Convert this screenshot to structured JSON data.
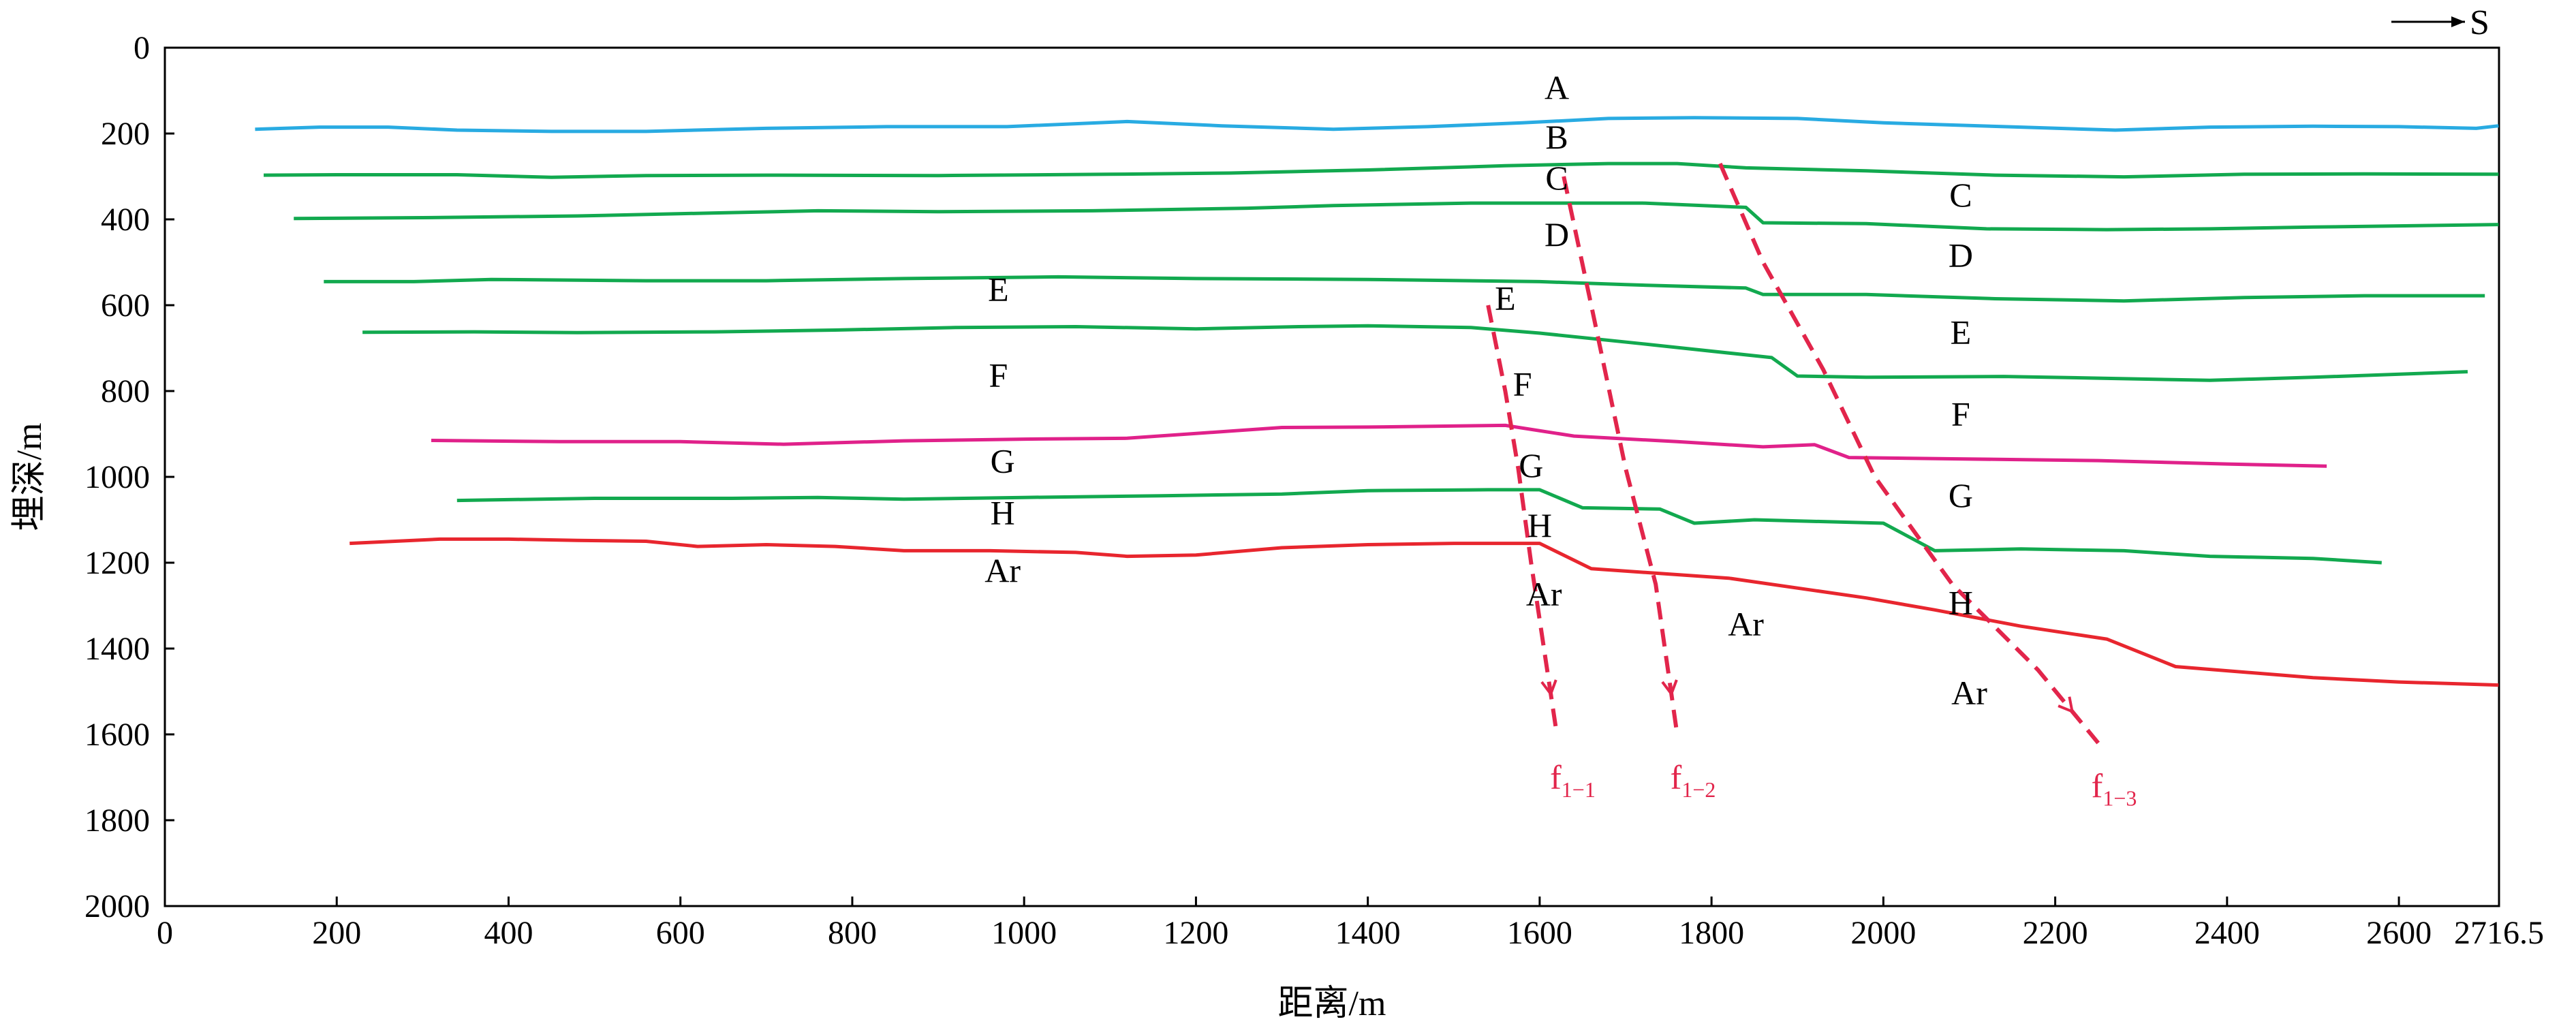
{
  "chart_data": {
    "type": "line",
    "xlabel": "距离/m",
    "ylabel": "埋深/m",
    "xlim": [
      0,
      2716.5
    ],
    "ylim": [
      0,
      2000
    ],
    "y_inverted": true,
    "x_ticks": [
      "0",
      "200",
      "400",
      "600",
      "800",
      "1000",
      "1200",
      "1400",
      "1600",
      "1800",
      "2000",
      "2200",
      "2400",
      "2600",
      "2716.5"
    ],
    "x_tick_values": [
      0,
      200,
      400,
      600,
      800,
      1000,
      1200,
      1400,
      1600,
      1800,
      2000,
      2200,
      2400,
      2600,
      2716.5
    ],
    "y_ticks": [
      "0",
      "200",
      "400",
      "600",
      "800",
      "1000",
      "1200",
      "1400",
      "1600",
      "1800",
      "2000"
    ],
    "y_tick_values": [
      0,
      200,
      400,
      600,
      800,
      1000,
      1200,
      1400,
      1600,
      1800,
      2000
    ],
    "grid": false,
    "direction_label": "S",
    "series": [
      {
        "color": "#29abe2",
        "points": [
          [
            105,
            190
          ],
          [
            180,
            185
          ],
          [
            260,
            185
          ],
          [
            340,
            192
          ],
          [
            450,
            195
          ],
          [
            560,
            195
          ],
          [
            700,
            188
          ],
          [
            840,
            184
          ],
          [
            980,
            184
          ],
          [
            1120,
            172
          ],
          [
            1230,
            182
          ],
          [
            1360,
            190
          ],
          [
            1470,
            184
          ],
          [
            1580,
            175
          ],
          [
            1680,
            165
          ],
          [
            1780,
            163
          ],
          [
            1900,
            165
          ],
          [
            2000,
            175
          ],
          [
            2160,
            185
          ],
          [
            2270,
            192
          ],
          [
            2380,
            185
          ],
          [
            2500,
            183
          ],
          [
            2600,
            184
          ],
          [
            2690,
            188
          ],
          [
            2716,
            182
          ]
        ]
      },
      {
        "color": "#12a94f",
        "points": [
          [
            115,
            297
          ],
          [
            200,
            296
          ],
          [
            340,
            296
          ],
          [
            450,
            302
          ],
          [
            560,
            298
          ],
          [
            700,
            297
          ],
          [
            900,
            298
          ],
          [
            1100,
            295
          ],
          [
            1240,
            292
          ],
          [
            1400,
            285
          ],
          [
            1560,
            275
          ],
          [
            1680,
            270
          ],
          [
            1760,
            270
          ],
          [
            1840,
            280
          ],
          [
            1980,
            287
          ],
          [
            2130,
            297
          ],
          [
            2280,
            301
          ],
          [
            2420,
            295
          ],
          [
            2560,
            294
          ],
          [
            2716,
            295
          ]
        ]
      },
      {
        "color": "#12a94f",
        "points": [
          [
            150,
            398
          ],
          [
            300,
            396
          ],
          [
            480,
            392
          ],
          [
            640,
            385
          ],
          [
            760,
            380
          ],
          [
            900,
            382
          ],
          [
            1080,
            380
          ],
          [
            1260,
            374
          ],
          [
            1360,
            368
          ],
          [
            1520,
            362
          ],
          [
            1600,
            362
          ],
          [
            1720,
            362
          ],
          [
            1840,
            372
          ],
          [
            1860,
            408
          ],
          [
            1980,
            410
          ],
          [
            2120,
            422
          ],
          [
            2260,
            424
          ],
          [
            2380,
            422
          ],
          [
            2500,
            418
          ],
          [
            2716,
            412
          ]
        ]
      },
      {
        "color": "#12a94f",
        "points": [
          [
            185,
            545
          ],
          [
            290,
            545
          ],
          [
            380,
            540
          ],
          [
            560,
            543
          ],
          [
            700,
            543
          ],
          [
            860,
            538
          ],
          [
            1040,
            534
          ],
          [
            1200,
            538
          ],
          [
            1400,
            540
          ],
          [
            1600,
            545
          ],
          [
            1700,
            552
          ],
          [
            1840,
            560
          ],
          [
            1860,
            575
          ],
          [
            1980,
            575
          ],
          [
            2130,
            585
          ],
          [
            2280,
            590
          ],
          [
            2420,
            582
          ],
          [
            2560,
            578
          ],
          [
            2700,
            578
          ]
        ]
      },
      {
        "color": "#12a94f",
        "points": [
          [
            230,
            663
          ],
          [
            360,
            662
          ],
          [
            480,
            664
          ],
          [
            640,
            662
          ],
          [
            780,
            658
          ],
          [
            920,
            652
          ],
          [
            1060,
            650
          ],
          [
            1200,
            655
          ],
          [
            1320,
            650
          ],
          [
            1400,
            648
          ],
          [
            1520,
            652
          ],
          [
            1600,
            665
          ],
          [
            1720,
            690
          ],
          [
            1870,
            722
          ],
          [
            1900,
            765
          ],
          [
            1980,
            768
          ],
          [
            2140,
            766
          ],
          [
            2250,
            770
          ],
          [
            2380,
            775
          ],
          [
            2500,
            768
          ],
          [
            2680,
            755
          ]
        ]
      },
      {
        "color": "#e0218a",
        "points": [
          [
            310,
            915
          ],
          [
            460,
            918
          ],
          [
            600,
            918
          ],
          [
            720,
            924
          ],
          [
            860,
            916
          ],
          [
            1000,
            912
          ],
          [
            1120,
            910
          ],
          [
            1300,
            885
          ],
          [
            1400,
            884
          ],
          [
            1560,
            880
          ],
          [
            1640,
            905
          ],
          [
            1760,
            918
          ],
          [
            1860,
            930
          ],
          [
            1920,
            925
          ],
          [
            1960,
            955
          ],
          [
            2080,
            958
          ],
          [
            2250,
            962
          ],
          [
            2400,
            970
          ],
          [
            2516,
            975
          ]
        ]
      },
      {
        "color": "#12a94f",
        "points": [
          [
            340,
            1055
          ],
          [
            500,
            1050
          ],
          [
            660,
            1050
          ],
          [
            760,
            1048
          ],
          [
            860,
            1052
          ],
          [
            1000,
            1048
          ],
          [
            1160,
            1044
          ],
          [
            1300,
            1040
          ],
          [
            1400,
            1032
          ],
          [
            1540,
            1030
          ],
          [
            1600,
            1030
          ],
          [
            1650,
            1072
          ],
          [
            1740,
            1075
          ],
          [
            1780,
            1108
          ],
          [
            1850,
            1100
          ],
          [
            2000,
            1108
          ],
          [
            2060,
            1172
          ],
          [
            2160,
            1168
          ],
          [
            2280,
            1172
          ],
          [
            2380,
            1185
          ],
          [
            2500,
            1190
          ],
          [
            2580,
            1200
          ]
        ]
      },
      {
        "color": "#e8262e",
        "points": [
          [
            215,
            1155
          ],
          [
            320,
            1145
          ],
          [
            400,
            1145
          ],
          [
            480,
            1148
          ],
          [
            560,
            1150
          ],
          [
            620,
            1162
          ],
          [
            700,
            1158
          ],
          [
            780,
            1162
          ],
          [
            860,
            1172
          ],
          [
            960,
            1172
          ],
          [
            1060,
            1176
          ],
          [
            1120,
            1185
          ],
          [
            1200,
            1182
          ],
          [
            1300,
            1165
          ],
          [
            1400,
            1158
          ],
          [
            1500,
            1155
          ],
          [
            1600,
            1155
          ],
          [
            1660,
            1214
          ],
          [
            1820,
            1236
          ],
          [
            1980,
            1282
          ],
          [
            2060,
            1310
          ],
          [
            2160,
            1348
          ],
          [
            2260,
            1378
          ],
          [
            2340,
            1442
          ],
          [
            2500,
            1468
          ],
          [
            2600,
            1478
          ],
          [
            2716,
            1485
          ]
        ]
      }
    ],
    "faults": [
      {
        "label": "f",
        "subscript": "1−1",
        "color": "#e2254b",
        "points": [
          [
            1540,
            600
          ],
          [
            1560,
            800
          ],
          [
            1575,
            980
          ],
          [
            1590,
            1200
          ],
          [
            1620,
            1600
          ]
        ]
      },
      {
        "label": "f",
        "subscript": "1−2",
        "color": "#e2254b",
        "points": [
          [
            1628,
            300
          ],
          [
            1660,
            600
          ],
          [
            1700,
            980
          ],
          [
            1735,
            1250
          ],
          [
            1760,
            1600
          ]
        ]
      },
      {
        "label": "f",
        "subscript": "1−3",
        "color": "#e2254b",
        "points": [
          [
            1810,
            270
          ],
          [
            1860,
            500
          ],
          [
            1930,
            750
          ],
          [
            1990,
            1000
          ],
          [
            2080,
            1250
          ],
          [
            2180,
            1450
          ],
          [
            2250,
            1620
          ]
        ]
      }
    ],
    "layer_labels": [
      {
        "text": "A",
        "x": 1620,
        "y": 120
      },
      {
        "text": "B",
        "x": 1620,
        "y": 235
      },
      {
        "text": "C",
        "x": 1620,
        "y": 330
      },
      {
        "text": "D",
        "x": 1620,
        "y": 462
      },
      {
        "text": "C",
        "x": 2090,
        "y": 370
      },
      {
        "text": "D",
        "x": 2090,
        "y": 510
      },
      {
        "text": "E",
        "x": 970,
        "y": 590
      },
      {
        "text": "E",
        "x": 1560,
        "y": 610
      },
      {
        "text": "E",
        "x": 2090,
        "y": 690
      },
      {
        "text": "F",
        "x": 970,
        "y": 790
      },
      {
        "text": "F",
        "x": 1580,
        "y": 810
      },
      {
        "text": "F",
        "x": 2090,
        "y": 880
      },
      {
        "text": "G",
        "x": 975,
        "y": 990
      },
      {
        "text": "G",
        "x": 1590,
        "y": 1000
      },
      {
        "text": "G",
        "x": 2090,
        "y": 1070
      },
      {
        "text": "H",
        "x": 975,
        "y": 1110
      },
      {
        "text": "H",
        "x": 1600,
        "y": 1140
      },
      {
        "text": "H",
        "x": 2090,
        "y": 1320
      },
      {
        "text": "Ar",
        "x": 975,
        "y": 1245
      },
      {
        "text": "Ar",
        "x": 1605,
        "y": 1300
      },
      {
        "text": "Ar",
        "x": 1840,
        "y": 1370
      },
      {
        "text": "Ar",
        "x": 2100,
        "y": 1530
      }
    ]
  }
}
